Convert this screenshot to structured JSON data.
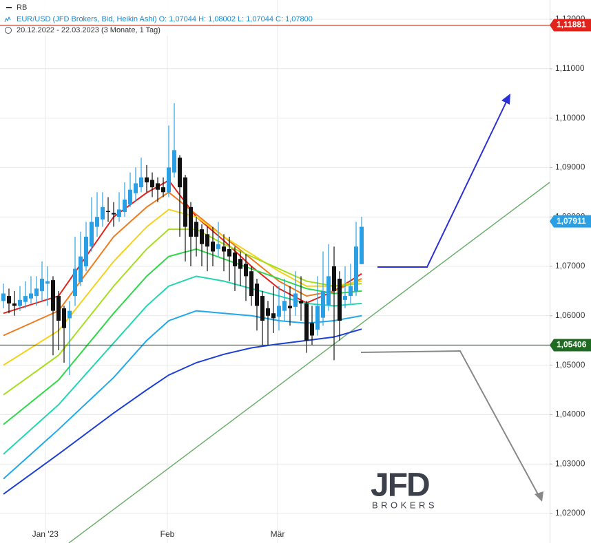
{
  "header": {
    "indicator": "RB",
    "instrument": "EUR/USD (JFD Brokers, Bid, Heikin Ashi)  O: 1,07044  H: 1,08002  L: 1,07044  C: 1,07800",
    "range": "20.12.2022 - 22.03.2023  (3 Monate, 1 Tag)"
  },
  "logo": {
    "name": "JFD",
    "sub": "BROKERS"
  },
  "chart_data": {
    "type": "candlestick",
    "x": [
      0,
      1,
      2,
      3,
      4,
      5,
      6,
      7,
      8,
      9,
      10,
      11,
      12,
      13,
      14,
      15,
      16,
      17,
      18,
      19,
      20,
      21,
      22,
      23,
      24,
      25,
      26,
      27,
      28,
      29,
      30,
      31,
      32,
      33,
      34,
      35,
      36,
      37,
      38,
      39,
      40,
      41,
      42,
      43,
      44,
      45,
      46,
      47,
      48,
      49,
      50,
      51,
      52,
      53,
      54,
      55,
      56,
      57,
      58,
      59,
      60,
      61,
      62,
      63,
      64,
      65
    ],
    "open": [
      1.063,
      1.064,
      1.0625,
      1.062,
      1.0628,
      1.0635,
      1.064,
      1.065,
      1.0665,
      1.0672,
      1.064,
      1.0615,
      1.0595,
      1.064,
      1.0668,
      1.07,
      1.074,
      1.078,
      1.0795,
      1.0812,
      1.0808,
      1.08,
      1.081,
      1.0825,
      1.0848,
      1.086,
      1.088,
      1.0875,
      1.0868,
      1.086,
      1.085,
      1.089,
      1.092,
      1.088,
      1.082,
      1.079,
      1.0775,
      1.0765,
      1.075,
      1.0735,
      1.074,
      1.0735,
      1.0728,
      1.0715,
      1.0705,
      1.069,
      1.0665,
      1.064,
      1.0615,
      1.0605,
      1.0598,
      1.061,
      1.062,
      1.0618,
      1.063,
      1.0625,
      1.0585,
      1.0572,
      1.0596,
      1.0622,
      1.07,
      1.0675,
      1.0632,
      1.064,
      1.065,
      1.07044
    ],
    "high": [
      1.0665,
      1.0655,
      1.065,
      1.066,
      1.067,
      1.068,
      1.068,
      1.071,
      1.07,
      1.068,
      1.065,
      1.062,
      1.063,
      1.076,
      1.077,
      1.079,
      1.084,
      1.085,
      1.085,
      1.084,
      1.083,
      1.085,
      1.087,
      1.089,
      1.09,
      1.092,
      1.0905,
      1.089,
      1.088,
      1.088,
      1.0985,
      1.103,
      1.0925,
      1.0885,
      1.083,
      1.08,
      1.0785,
      1.078,
      1.078,
      1.079,
      1.0765,
      1.076,
      1.074,
      1.073,
      1.0725,
      1.07,
      1.0675,
      1.065,
      1.063,
      1.066,
      1.066,
      1.0675,
      1.066,
      1.069,
      1.068,
      1.063,
      1.062,
      1.068,
      1.073,
      1.0745,
      1.074,
      1.069,
      1.07,
      1.0705,
      1.079,
      1.08002
    ],
    "low": [
      1.0615,
      1.0605,
      1.06,
      1.061,
      1.0615,
      1.0625,
      1.062,
      1.063,
      1.062,
      1.052,
      1.053,
      1.0505,
      1.048,
      1.062,
      1.066,
      1.069,
      1.073,
      1.076,
      1.078,
      1.079,
      1.078,
      1.079,
      1.08,
      1.082,
      1.083,
      1.085,
      1.085,
      1.084,
      1.083,
      1.084,
      1.084,
      1.088,
      1.076,
      1.071,
      1.07,
      1.072,
      1.07,
      1.069,
      1.07,
      1.072,
      1.069,
      1.067,
      1.065,
      1.066,
      1.063,
      1.062,
      1.057,
      1.054,
      1.054,
      1.0565,
      1.057,
      1.059,
      1.058,
      1.06,
      1.059,
      1.0525,
      1.054,
      1.056,
      1.058,
      1.061,
      1.051,
      1.055,
      1.0615,
      1.0625,
      1.064,
      1.07044
    ],
    "close": [
      1.0645,
      1.0625,
      1.062,
      1.0632,
      1.064,
      1.0645,
      1.0655,
      1.0675,
      1.067,
      1.061,
      1.059,
      1.0575,
      1.061,
      1.0695,
      1.072,
      1.076,
      1.079,
      1.08,
      1.082,
      1.081,
      1.0805,
      1.0815,
      1.0835,
      1.0855,
      1.0868,
      1.088,
      1.087,
      1.086,
      1.0855,
      1.085,
      1.09,
      1.0935,
      1.086,
      1.078,
      1.076,
      1.076,
      1.0745,
      1.074,
      1.073,
      1.0745,
      1.073,
      1.072,
      1.07,
      1.0695,
      1.068,
      1.064,
      1.062,
      1.059,
      1.06,
      1.0595,
      1.062,
      1.063,
      1.0615,
      1.0645,
      1.0625,
      1.055,
      1.056,
      1.062,
      1.065,
      1.068,
      1.065,
      1.059,
      1.064,
      1.066,
      1.074,
      1.078
    ],
    "up_color": "#2a9fe3",
    "down_color": "#111111",
    "ribbon": [
      {
        "color": "#e0231b",
        "x": [
          0,
          10,
          20,
          26,
          30,
          35,
          40,
          45,
          50,
          55,
          60,
          65
        ],
        "values": [
          1.0605,
          1.064,
          1.08,
          1.0849,
          1.0874,
          1.08,
          1.0752,
          1.07,
          1.0655,
          1.0626,
          1.065,
          1.0685
        ]
      },
      {
        "color": "#f07a1c",
        "x": [
          0,
          10,
          20,
          26,
          30,
          35,
          40,
          45,
          50,
          55,
          60,
          65
        ],
        "values": [
          1.056,
          1.061,
          1.076,
          1.082,
          1.085,
          1.0805,
          1.076,
          1.0715,
          1.067,
          1.064,
          1.065,
          1.0675
        ]
      },
      {
        "color": "#f4d21a",
        "x": [
          0,
          10,
          20,
          26,
          30,
          35,
          40,
          45,
          50,
          55,
          60,
          65
        ],
        "values": [
          1.05,
          1.057,
          1.071,
          1.078,
          1.0815,
          1.08,
          1.076,
          1.0725,
          1.069,
          1.066,
          1.066,
          1.067
        ]
      },
      {
        "color": "#a6de1e",
        "x": [
          0,
          10,
          20,
          26,
          30,
          35,
          40,
          45,
          50,
          55,
          60,
          65
        ],
        "values": [
          1.044,
          1.052,
          1.066,
          1.0735,
          1.0775,
          1.0775,
          1.0745,
          1.072,
          1.0695,
          1.067,
          1.066,
          1.0665
        ]
      },
      {
        "color": "#2ed84a",
        "x": [
          0,
          10,
          20,
          26,
          30,
          35,
          40,
          45,
          50,
          55,
          60,
          65
        ],
        "values": [
          1.038,
          1.047,
          1.0605,
          1.068,
          1.072,
          1.0735,
          1.0715,
          1.0695,
          1.0675,
          1.0655,
          1.0645,
          1.065
        ]
      },
      {
        "color": "#22d6b0",
        "x": [
          0,
          10,
          20,
          26,
          30,
          35,
          40,
          45,
          50,
          55,
          60,
          65
        ],
        "values": [
          1.032,
          1.042,
          1.0545,
          1.062,
          1.066,
          1.068,
          1.067,
          1.0655,
          1.064,
          1.0625,
          1.062,
          1.0625
        ]
      },
      {
        "color": "#1fa9ea",
        "x": [
          0,
          10,
          20,
          26,
          30,
          35,
          40,
          45,
          50,
          55,
          60,
          65
        ],
        "values": [
          1.027,
          1.037,
          1.0475,
          1.055,
          1.059,
          1.061,
          1.0605,
          1.06,
          1.059,
          1.0585,
          1.059,
          1.06
        ]
      },
      {
        "color": "#1d3fd6",
        "x": [
          0,
          10,
          20,
          26,
          30,
          35,
          40,
          45,
          50,
          55,
          60,
          65
        ],
        "values": [
          1.0239,
          1.032,
          1.0403,
          1.045,
          1.048,
          1.0505,
          1.0522,
          1.0535,
          1.0543,
          1.055,
          1.0557,
          1.0573
        ]
      }
    ],
    "xlim": [
      -0.625,
      99.125
    ],
    "xticks": [
      {
        "value": 7.6,
        "label": "Jan '23"
      },
      {
        "value": 29.75,
        "label": "Feb"
      },
      {
        "value": 49.75,
        "label": "Mär"
      }
    ],
    "ylim": [
      1.01401,
      1.1239
    ],
    "yticks": [
      {
        "value": 1.02,
        "label": "1,02000"
      },
      {
        "value": 1.03,
        "label": "1,03000"
      },
      {
        "value": 1.04,
        "label": "1,04000"
      },
      {
        "value": 1.05,
        "label": "1,05000"
      },
      {
        "value": 1.06,
        "label": "1,06000"
      },
      {
        "value": 1.07,
        "label": "1,07000"
      },
      {
        "value": 1.08,
        "label": "1,08000"
      },
      {
        "value": 1.09,
        "label": "1,09000"
      },
      {
        "value": 1.1,
        "label": "1,10000"
      },
      {
        "value": 1.11,
        "label": "1,11000"
      },
      {
        "value": 1.12,
        "label": "1,12000"
      }
    ],
    "grid": true,
    "price_lines": [
      {
        "value": 1.11881,
        "label": "1,11881",
        "color": "#e0231b",
        "line_color": "#b0362a",
        "line": true
      },
      {
        "value": 1.07911,
        "label": "1,07911",
        "color": "#2a9fe3",
        "line_color": "#2a9fe3",
        "line": false
      },
      {
        "value": 1.05406,
        "label": "1,05406",
        "color": "#1f6b22",
        "line_color": "#2a5a2a",
        "line": true
      }
    ]
  }
}
